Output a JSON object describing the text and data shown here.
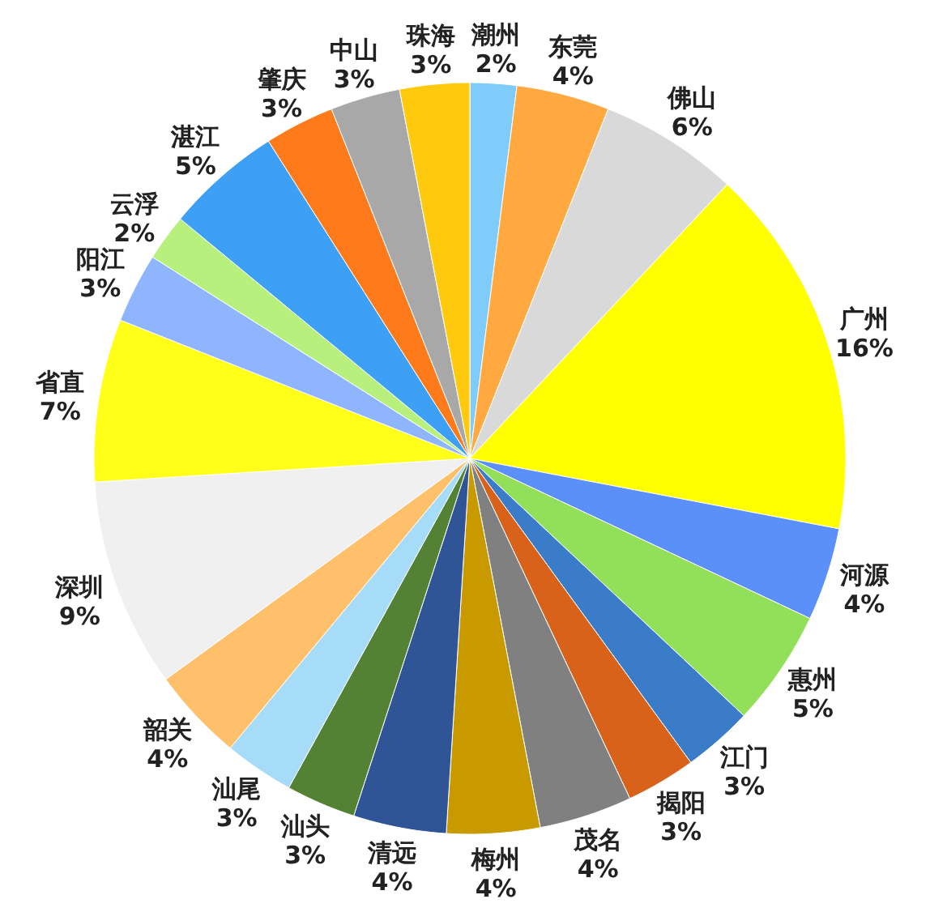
{
  "chart_data": {
    "type": "pie",
    "categories": [
      "潮州",
      "东莞",
      "佛山",
      "广州",
      "河源",
      "惠州",
      "江门",
      "揭阳",
      "茂名",
      "梅州",
      "清远",
      "汕头",
      "汕尾",
      "韶关",
      "深圳",
      "省直",
      "阳江",
      "云浮",
      "湛江",
      "肇庆",
      "中山",
      "珠海"
    ],
    "values": [
      2,
      4,
      6,
      16,
      4,
      5,
      3,
      3,
      4,
      4,
      4,
      3,
      3,
      4,
      9,
      7,
      3,
      2,
      5,
      3,
      3,
      3
    ],
    "value_labels": [
      "2%",
      "4%",
      "6%",
      "16%",
      "4%",
      "5%",
      "3%",
      "3%",
      "4%",
      "4%",
      "4%",
      "3%",
      "3%",
      "4%",
      "9%",
      "7%",
      "3%",
      "2%",
      "5%",
      "3%",
      "3%",
      "3%"
    ],
    "colors": [
      "#7fcbf9",
      "#ffa940",
      "#d9d9d9",
      "#ffff00",
      "#5b8ff9",
      "#92e05a",
      "#3a7cc8",
      "#d9621a",
      "#808080",
      "#c99a00",
      "#2f5597",
      "#548235",
      "#a6dcf7",
      "#ffc06c",
      "#f0f0f0",
      "#ffff1a",
      "#8fb5ff",
      "#b7f07c",
      "#3ea0f5",
      "#ff7a1a",
      "#a8a8a8",
      "#ffc90e"
    ]
  }
}
